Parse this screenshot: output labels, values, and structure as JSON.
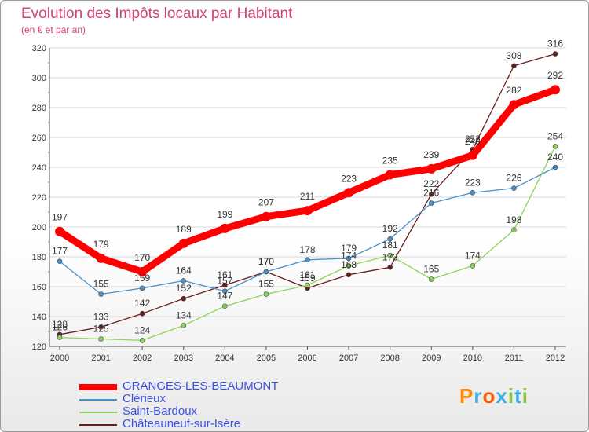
{
  "title": "Evolution des Impôts locaux par Habitant",
  "subtitle": "(en € et par an)",
  "brand": "Proxiti",
  "chart_data": {
    "type": "line",
    "x": [
      "2000",
      "2001",
      "2002",
      "2003",
      "2004",
      "2005",
      "2006",
      "2007",
      "2008",
      "2009",
      "2010",
      "2011",
      "2012"
    ],
    "ylim": [
      120,
      320
    ],
    "yticks": [
      120,
      140,
      160,
      180,
      200,
      220,
      240,
      260,
      280,
      300,
      320
    ],
    "series": [
      {
        "name": "GRANGES-LES-BEAUMONT",
        "color": "#ff0000",
        "values": [
          197,
          179,
          170,
          189,
          199,
          207,
          211,
          223,
          235,
          239,
          248,
          282,
          292
        ]
      },
      {
        "name": "Clérieux",
        "color": "#4a90c8",
        "values": [
          177,
          155,
          159,
          164,
          157,
          170,
          178,
          179,
          192,
          216,
          223,
          226,
          240
        ]
      },
      {
        "name": "Saint-Bardoux",
        "color": "#8fd45a",
        "values": [
          126,
          125,
          124,
          134,
          147,
          155,
          161,
          174,
          181,
          165,
          174,
          198,
          254
        ]
      },
      {
        "name": "Châteauneuf-sur-Isère",
        "color": "#6b1e1e",
        "values": [
          128,
          133,
          142,
          152,
          161,
          170,
          159,
          168,
          173,
          222,
          252,
          308,
          316
        ]
      }
    ],
    "point_labels": [
      [
        "197",
        "179",
        "170",
        "189",
        "199",
        "207",
        "211",
        "223",
        "235",
        "239",
        "248",
        "282",
        "292"
      ],
      [
        "177",
        "155",
        "159",
        "164",
        "157",
        "170",
        "178",
        "179",
        "192",
        "216",
        "223",
        "226",
        "240"
      ],
      [
        "126",
        "125",
        "124",
        "134",
        "147",
        "155",
        "161",
        "174",
        "181",
        "165",
        "174",
        "198",
        "254"
      ],
      [
        "128",
        "133",
        "142",
        "152",
        "161",
        "170",
        "159",
        "168",
        "173",
        "222",
        "252",
        "308",
        "316"
      ]
    ],
    "legend": [
      "GRANGES-LES-BEAUMONT",
      "Clérieux",
      "Saint-Bardoux",
      "Châteauneuf-sur-Isère"
    ],
    "legend_position": "bottom-left"
  }
}
